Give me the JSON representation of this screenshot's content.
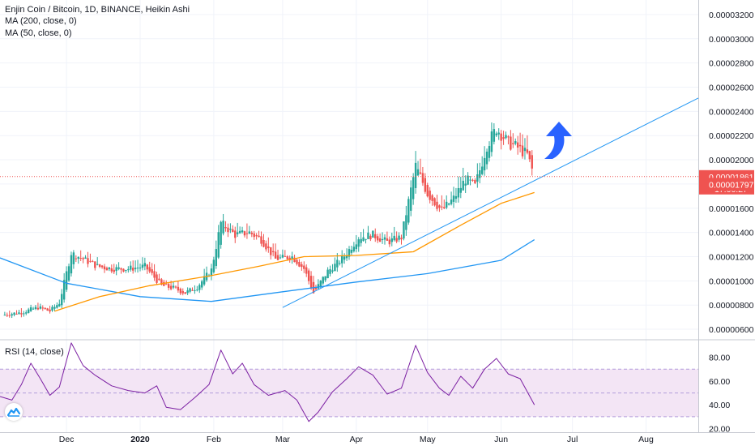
{
  "legend": {
    "title": "Enjin Coin / Bitcoin, 1D, BINANCE, Heikin Ashi",
    "ma200": "MA (200, close, 0)",
    "ma50": "MA (50, close, 0)",
    "rsi": "RSI (14, close)"
  },
  "colors": {
    "up": "#26a69a",
    "down": "#ef5350",
    "ma50": "#ff9800",
    "ma200": "#2196f3",
    "trendline": "#2196f3",
    "rsi_line": "#7b1fa2",
    "rsi_band": "#f3e5f5",
    "price_line": "#ef5350",
    "arrow": "#2962ff"
  },
  "icons": {
    "logo": "tradingview-logo-icon",
    "arrow": "up-arrow-icon"
  },
  "chart_data": [
    {
      "type": "candlestick",
      "title": "Enjin Coin / Bitcoin, 1D, BINANCE, Heikin Ashi",
      "x_tick_labels": [
        "Dec",
        "2020",
        "Feb",
        "Mar",
        "Apr",
        "May",
        "Jun",
        "Jul",
        "Aug"
      ],
      "y_tick_labels": [
        "0.00000600",
        "0.00000800",
        "0.00001000",
        "0.00001200",
        "0.00001400",
        "0.00001600",
        "0.00001800",
        "0.00002000",
        "0.00002200",
        "0.00002400",
        "0.00002600",
        "0.00002800",
        "0.00003000",
        "0.00003200"
      ],
      "ylim": [
        5.2e-06,
        3.32e-05
      ],
      "x_range": [
        "2019-11-03",
        "2020-08-23"
      ],
      "last_price": "0.00001861",
      "countdown": "17:06:27",
      "second_price_label": "0.00001797",
      "candles_approx_close": [
        [
          "2019-11-05",
          7.2e-06
        ],
        [
          "2019-11-12",
          7.4e-06
        ],
        [
          "2019-11-19",
          7.8e-06
        ],
        [
          "2019-11-24",
          7.5e-06
        ],
        [
          "2019-11-28",
          8.2e-06
        ],
        [
          "2019-12-03",
          1.23e-05
        ],
        [
          "2019-12-08",
          1.18e-05
        ],
        [
          "2019-12-14",
          1.12e-05
        ],
        [
          "2019-12-20",
          1.1e-05
        ],
        [
          "2019-12-27",
          1.1e-05
        ],
        [
          "2020-01-03",
          1.12e-05
        ],
        [
          "2020-01-10",
          9.6e-06
        ],
        [
          "2020-01-15",
          9.4e-06
        ],
        [
          "2020-01-20",
          9e-06
        ],
        [
          "2020-01-25",
          9.5e-06
        ],
        [
          "2020-01-31",
          1.09e-05
        ],
        [
          "2020-02-04",
          1.48e-05
        ],
        [
          "2020-02-10",
          1.38e-05
        ],
        [
          "2020-02-16",
          1.4e-05
        ],
        [
          "2020-02-21",
          1.34e-05
        ],
        [
          "2020-02-27",
          1.18e-05
        ],
        [
          "2020-03-05",
          1.2e-05
        ],
        [
          "2020-03-10",
          1.1e-05
        ],
        [
          "2020-03-14",
          9e-06
        ],
        [
          "2020-03-20",
          1.08e-05
        ],
        [
          "2020-03-26",
          1.18e-05
        ],
        [
          "2020-04-02",
          1.36e-05
        ],
        [
          "2020-04-08",
          1.38e-05
        ],
        [
          "2020-04-14",
          1.32e-05
        ],
        [
          "2020-04-20",
          1.36e-05
        ],
        [
          "2020-04-26",
          1.95e-05
        ],
        [
          "2020-05-01",
          1.72e-05
        ],
        [
          "2020-05-07",
          1.58e-05
        ],
        [
          "2020-05-12",
          1.68e-05
        ],
        [
          "2020-05-17",
          1.84e-05
        ],
        [
          "2020-05-21",
          1.78e-05
        ],
        [
          "2020-05-26",
          2.12e-05
        ],
        [
          "2020-05-30",
          2.26e-05
        ],
        [
          "2020-06-04",
          2.14e-05
        ],
        [
          "2020-06-08",
          2.1e-05
        ],
        [
          "2020-06-12",
          2.04e-05
        ],
        [
          "2020-06-15",
          1.86e-05
        ]
      ],
      "ma50": [
        [
          "2019-11-26",
          7.5e-06
        ],
        [
          "2019-12-15",
          8.7e-06
        ],
        [
          "2020-01-05",
          9.6e-06
        ],
        [
          "2020-01-30",
          1.04e-05
        ],
        [
          "2020-02-20",
          1.12e-05
        ],
        [
          "2020-03-10",
          1.2e-05
        ],
        [
          "2020-04-01",
          1.21e-05
        ],
        [
          "2020-04-25",
          1.24e-05
        ],
        [
          "2020-05-15",
          1.46e-05
        ],
        [
          "2020-06-01",
          1.64e-05
        ],
        [
          "2020-06-15",
          1.73e-05
        ]
      ],
      "ma200": [
        [
          "2019-11-03",
          1.19e-05
        ],
        [
          "2019-12-01",
          9.8e-06
        ],
        [
          "2020-01-01",
          8.7e-06
        ],
        [
          "2020-01-31",
          8.3e-06
        ],
        [
          "2020-03-01",
          9.1e-06
        ],
        [
          "2020-04-01",
          9.9e-06
        ],
        [
          "2020-05-01",
          1.06e-05
        ],
        [
          "2020-06-01",
          1.17e-05
        ],
        [
          "2020-06-15",
          1.34e-05
        ]
      ],
      "trendline": [
        [
          "2020-03-01",
          7.8e-06
        ],
        [
          "2020-08-23",
          2.51e-05
        ]
      ]
    },
    {
      "type": "line",
      "title": "RSI (14, close)",
      "y_tick_labels": [
        "20.00",
        "40.00",
        "60.00",
        "80.00"
      ],
      "ylim": [
        17,
        94
      ],
      "band": [
        30,
        70
      ],
      "values": [
        [
          "2019-11-03",
          47
        ],
        [
          "2019-11-08",
          44
        ],
        [
          "2019-11-12",
          57
        ],
        [
          "2019-11-16",
          75
        ],
        [
          "2019-11-20",
          62
        ],
        [
          "2019-11-24",
          48
        ],
        [
          "2019-11-28",
          55
        ],
        [
          "2019-12-03",
          92
        ],
        [
          "2019-12-08",
          73
        ],
        [
          "2019-12-13",
          65
        ],
        [
          "2019-12-20",
          56
        ],
        [
          "2019-12-27",
          52
        ],
        [
          "2020-01-03",
          50
        ],
        [
          "2020-01-08",
          56
        ],
        [
          "2020-01-12",
          38
        ],
        [
          "2020-01-18",
          36
        ],
        [
          "2020-01-24",
          46
        ],
        [
          "2020-01-30",
          57
        ],
        [
          "2020-02-04",
          86
        ],
        [
          "2020-02-09",
          66
        ],
        [
          "2020-02-13",
          75
        ],
        [
          "2020-02-18",
          57
        ],
        [
          "2020-02-24",
          48
        ],
        [
          "2020-03-02",
          52
        ],
        [
          "2020-03-07",
          44
        ],
        [
          "2020-03-12",
          26
        ],
        [
          "2020-03-16",
          34
        ],
        [
          "2020-03-22",
          51
        ],
        [
          "2020-03-28",
          62
        ],
        [
          "2020-04-02",
          72
        ],
        [
          "2020-04-08",
          65
        ],
        [
          "2020-04-14",
          49
        ],
        [
          "2020-04-20",
          54
        ],
        [
          "2020-04-26",
          90
        ],
        [
          "2020-05-01",
          67
        ],
        [
          "2020-05-06",
          54
        ],
        [
          "2020-05-10",
          48
        ],
        [
          "2020-05-15",
          64
        ],
        [
          "2020-05-20",
          54
        ],
        [
          "2020-05-25",
          70
        ],
        [
          "2020-05-30",
          79
        ],
        [
          "2020-06-04",
          66
        ],
        [
          "2020-06-09",
          62
        ],
        [
          "2020-06-15",
          40
        ]
      ]
    }
  ]
}
